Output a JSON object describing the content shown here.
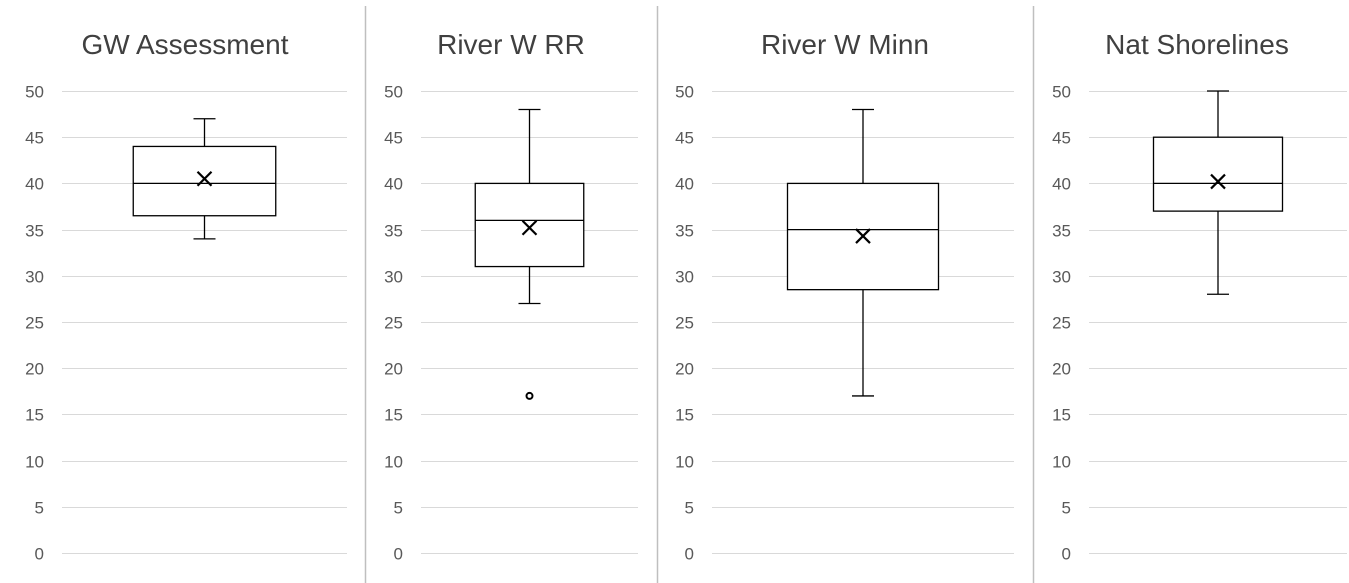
{
  "chart_data": [
    {
      "type": "boxplot",
      "title": "GW Assessment",
      "ylim": [
        0,
        50
      ],
      "yticks": [
        "0",
        "5",
        "10",
        "15",
        "20",
        "25",
        "30",
        "35",
        "40",
        "45",
        "50"
      ],
      "grid": true,
      "box": {
        "min": 34,
        "q1": 36.5,
        "median": 40,
        "q3": 44,
        "max": 47,
        "mean": 40.5,
        "outliers": []
      }
    },
    {
      "type": "boxplot",
      "title": "River W RR",
      "ylim": [
        0,
        50
      ],
      "yticks": [
        "0",
        "5",
        "10",
        "15",
        "20",
        "25",
        "30",
        "35",
        "40",
        "45",
        "50"
      ],
      "grid": true,
      "box": {
        "min": 27,
        "q1": 31,
        "median": 36,
        "q3": 40,
        "max": 48,
        "mean": 35.2,
        "outliers": [
          17
        ]
      }
    },
    {
      "type": "boxplot",
      "title": "River W Minn",
      "ylim": [
        0,
        50
      ],
      "yticks": [
        "0",
        "5",
        "10",
        "15",
        "20",
        "25",
        "30",
        "35",
        "40",
        "45",
        "50"
      ],
      "grid": true,
      "box": {
        "min": 17,
        "q1": 28.5,
        "median": 35,
        "q3": 40,
        "max": 48,
        "mean": 34.3,
        "outliers": []
      }
    },
    {
      "type": "boxplot",
      "title": "Nat Shorelines",
      "ylim": [
        0,
        50
      ],
      "yticks": [
        "0",
        "5",
        "10",
        "15",
        "20",
        "25",
        "30",
        "35",
        "40",
        "45",
        "50"
      ],
      "grid": true,
      "box": {
        "min": 28,
        "q1": 37,
        "median": 40,
        "q3": 45,
        "max": 50,
        "mean": 40.2,
        "outliers": []
      }
    }
  ],
  "colors": {
    "grid": "#d9d9d9",
    "box_line": "#000000",
    "divider": "#bfbfbf",
    "title_text": "#404040",
    "tick_text": "#595959"
  }
}
